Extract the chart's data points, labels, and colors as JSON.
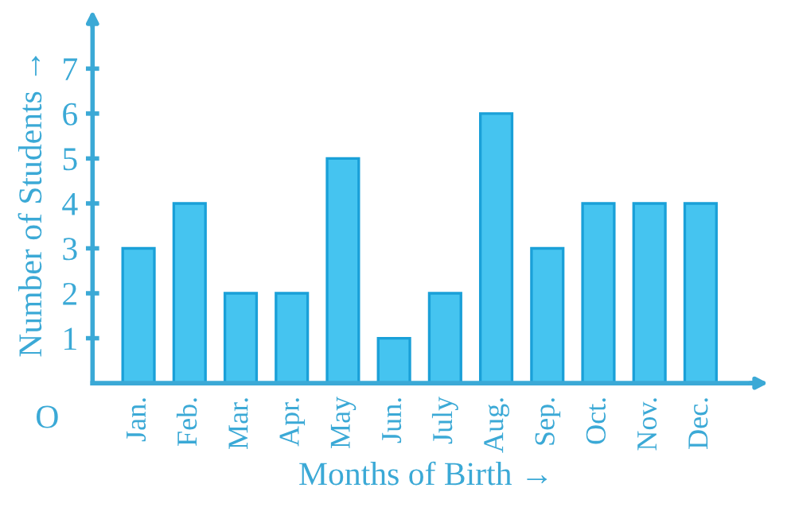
{
  "chart_data": {
    "type": "bar",
    "xlabel": "Months of Birth →",
    "ylabel": "Number of Students →",
    "categories": [
      "Jan.",
      "Feb.",
      "Mar.",
      "Apr.",
      "May",
      "Jun.",
      "July",
      "Aug.",
      "Sep.",
      "Oct.",
      "Nov.",
      "Dec."
    ],
    "values": [
      3,
      4,
      2,
      2,
      5,
      1,
      2,
      6,
      3,
      4,
      4,
      4
    ],
    "color": "#45c4f0",
    "ylim": [
      0,
      8
    ],
    "yticks": [
      1,
      2,
      3,
      4,
      5,
      6,
      7
    ],
    "annotations": [
      "O"
    ],
    "grid": false
  }
}
